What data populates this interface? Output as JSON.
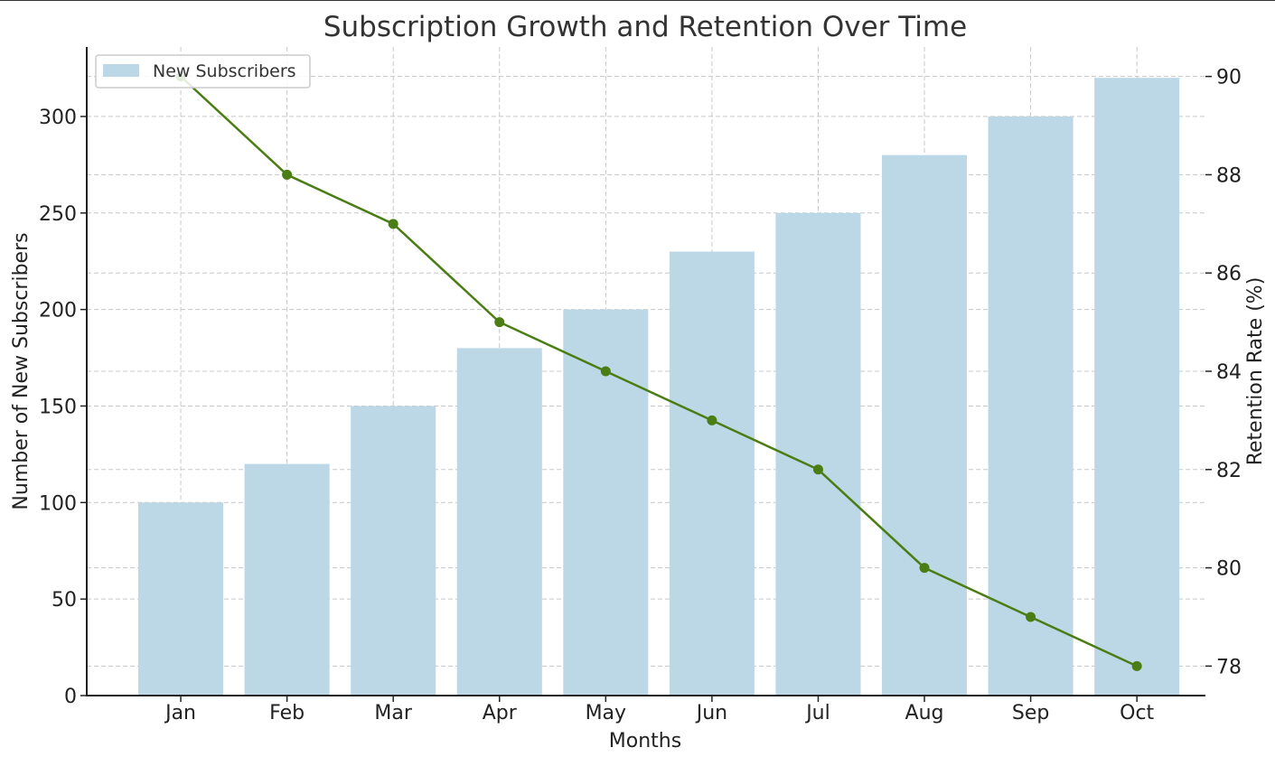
{
  "chart_data": {
    "type": "bar",
    "title": "Subscription Growth and Retention Over Time",
    "xlabel": "Months",
    "ylabel": "Number of New Subscribers",
    "ylabel_right": "Retention Rate (%)",
    "categories": [
      "Jan",
      "Feb",
      "Mar",
      "Apr",
      "May",
      "Jun",
      "Jul",
      "Aug",
      "Sep",
      "Oct"
    ],
    "series": [
      {
        "name": "New Subscribers",
        "type": "bar",
        "axis": "left",
        "color": "#bcd8e6",
        "values": [
          100,
          120,
          150,
          180,
          200,
          230,
          250,
          280,
          300,
          320
        ]
      },
      {
        "type": "line",
        "axis": "right",
        "color": "#4a7e14",
        "marker": "circle",
        "values": [
          90,
          88,
          87,
          85,
          84,
          83,
          82,
          80,
          79,
          78
        ]
      }
    ],
    "ylim": [
      0,
      336
    ],
    "ylim_right": [
      77.4,
      90.6
    ],
    "yticks": [
      0,
      50,
      100,
      150,
      200,
      250,
      300
    ],
    "yticks_right": [
      78,
      80,
      82,
      84,
      86,
      88,
      90
    ],
    "grid": true,
    "legend": {
      "position": "top-left",
      "entries": [
        "New Subscribers"
      ]
    }
  }
}
